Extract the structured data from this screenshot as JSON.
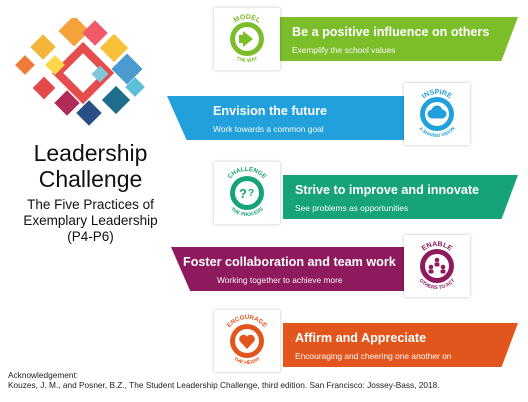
{
  "colors": {
    "model": "#7cbd2a",
    "inspire": "#21a0db",
    "challenge": "#17a37a",
    "enable": "#8e1a5d",
    "encourage": "#e2561e"
  },
  "title": {
    "line1": "Leadership",
    "line2": "Challenge",
    "sub1": "The Five Practices of",
    "sub2": "Exemplary Leadership",
    "sub3": "(P4-P6)"
  },
  "practices": [
    {
      "badge_top": "MODEL",
      "badge_bottom": "THE WAY",
      "heading": "Be a positive influence on others",
      "description": "Exemplify the school values",
      "icon": "arrow-icon"
    },
    {
      "badge_top": "INSPIRE",
      "badge_bottom": "A SHARED VISION",
      "heading": "Envision the future",
      "description": "Work towards a common goal",
      "icon": "cloud-icon"
    },
    {
      "badge_top": "CHALLENGE",
      "badge_bottom": "THE PROCESS",
      "heading": "Strive to improve and innovate",
      "description": "See problems as opportunities",
      "icon": "question-icon"
    },
    {
      "badge_top": "ENABLE",
      "badge_bottom": "OTHERS TO ACT",
      "heading": "Foster collaboration and team work",
      "description": "Working together to achieve more",
      "icon": "people-icon"
    },
    {
      "badge_top": "ENCOURAGE",
      "badge_bottom": "THE HEART",
      "heading": "Affirm and Appreciate",
      "description": "Encouraging and cheering one another on",
      "icon": "heart-icon"
    }
  ],
  "acknowledgement": {
    "label": "Acknowledgement:",
    "citation": "Kouzes, J. M., and Posner, B.Z., The Student Leadership Challenge, third edition. San Francisco: Jossey-Bass, 2018."
  }
}
